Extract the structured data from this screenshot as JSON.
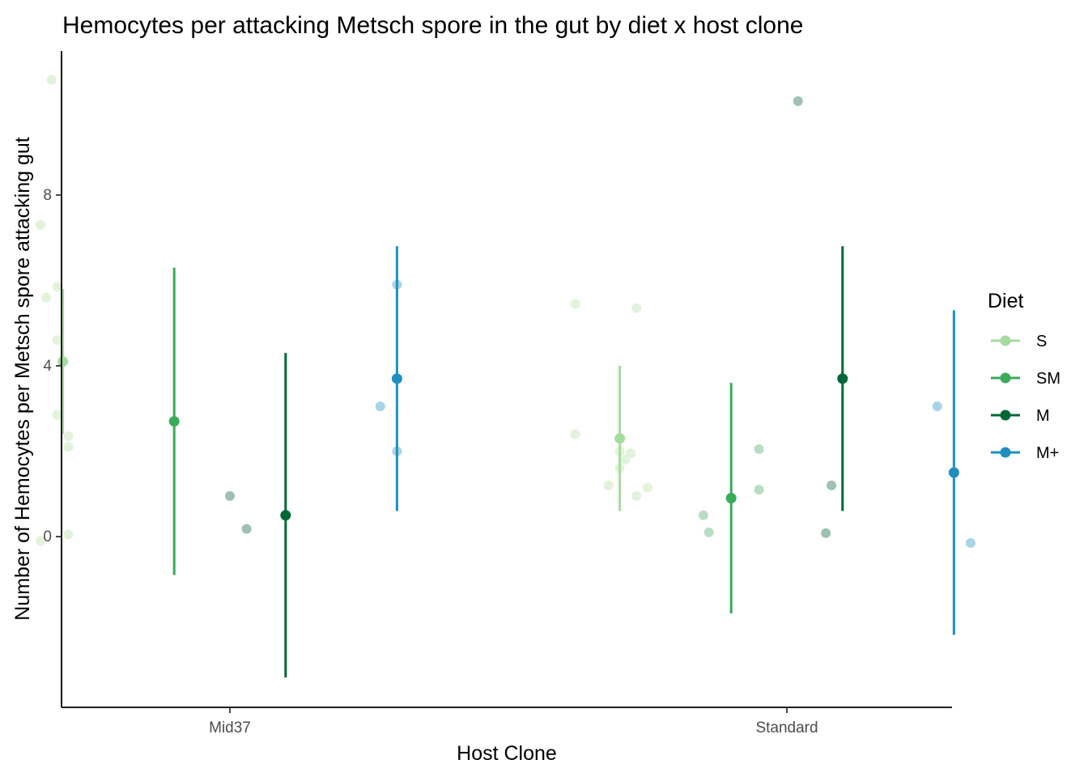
{
  "chart_data": {
    "type": "scatter",
    "title": "Hemocytes per attacking Metsch spore in the gut by diet x host clone",
    "xlabel": "Host Clone",
    "ylabel": "Number of Hemocytes per Metsch spore attacking gut",
    "categories": [
      "Mid37",
      "Standard"
    ],
    "yticks": [
      0,
      4,
      8
    ],
    "ylim": [
      -4,
      11.5
    ],
    "grid": false,
    "legend": {
      "title": "Diet",
      "position": "right"
    },
    "dodge_offsets": [
      -0.3,
      -0.1,
      0.1,
      0.3
    ],
    "series": [
      {
        "name": "S",
        "color": "#a6dba0",
        "raw_color": "#e2f2db",
        "summary": [
          {
            "category": "Mid37",
            "mean": 4.1,
            "lower": 2.4,
            "upper": 5.8
          },
          {
            "category": "Standard",
            "mean": 2.3,
            "lower": 0.6,
            "upper": 4.0
          }
        ],
        "points": [
          {
            "category": "Mid37",
            "jitter": -0.02,
            "y": 10.7
          },
          {
            "category": "Mid37",
            "jitter": -0.04,
            "y": 7.3
          },
          {
            "category": "Mid37",
            "jitter": -0.01,
            "y": 5.85
          },
          {
            "category": "Mid37",
            "jitter": -0.03,
            "y": 5.6
          },
          {
            "category": "Mid37",
            "jitter": -0.01,
            "y": 4.6
          },
          {
            "category": "Mid37",
            "jitter": -0.01,
            "y": 2.85
          },
          {
            "category": "Mid37",
            "jitter": 0.01,
            "y": 2.35
          },
          {
            "category": "Mid37",
            "jitter": 0.01,
            "y": 2.1
          },
          {
            "category": "Mid37",
            "jitter": 0.01,
            "y": 0.05
          },
          {
            "category": "Mid37",
            "jitter": -0.04,
            "y": -0.1
          },
          {
            "category": "Standard",
            "jitter": -0.08,
            "y": 5.45
          },
          {
            "category": "Standard",
            "jitter": 0.03,
            "y": 5.35
          },
          {
            "category": "Standard",
            "jitter": -0.08,
            "y": 2.4
          },
          {
            "category": "Standard",
            "jitter": 0.0,
            "y": 2.0
          },
          {
            "category": "Standard",
            "jitter": 0.02,
            "y": 1.95
          },
          {
            "category": "Standard",
            "jitter": 0.01,
            "y": 1.8
          },
          {
            "category": "Standard",
            "jitter": 0.0,
            "y": 1.6
          },
          {
            "category": "Standard",
            "jitter": -0.02,
            "y": 1.2
          },
          {
            "category": "Standard",
            "jitter": 0.05,
            "y": 1.15
          },
          {
            "category": "Standard",
            "jitter": 0.03,
            "y": 0.95
          }
        ]
      },
      {
        "name": "SM",
        "color": "#3aab5b",
        "raw_color": "#b9ddc4",
        "summary": [
          {
            "category": "Mid37",
            "mean": 2.7,
            "lower": -0.9,
            "upper": 6.3
          },
          {
            "category": "Standard",
            "mean": 0.9,
            "lower": -1.8,
            "upper": 3.6
          }
        ],
        "points": [
          {
            "category": "Standard",
            "jitter": -0.05,
            "y": 0.5
          },
          {
            "category": "Standard",
            "jitter": -0.04,
            "y": 0.1
          },
          {
            "category": "Standard",
            "jitter": 0.05,
            "y": 2.05
          },
          {
            "category": "Standard",
            "jitter": 0.05,
            "y": 1.1
          }
        ]
      },
      {
        "name": "M",
        "color": "#006837",
        "raw_color": "#9fc1b1",
        "summary": [
          {
            "category": "Mid37",
            "mean": 0.5,
            "lower": -3.3,
            "upper": 4.3
          },
          {
            "category": "Standard",
            "mean": 3.7,
            "lower": 0.6,
            "upper": 6.8
          }
        ],
        "points": [
          {
            "category": "Mid37",
            "jitter": -0.1,
            "y": 0.95
          },
          {
            "category": "Mid37",
            "jitter": -0.07,
            "y": 0.18
          },
          {
            "category": "Standard",
            "jitter": -0.08,
            "y": 10.2
          },
          {
            "category": "Standard",
            "jitter": -0.02,
            "y": 1.2
          },
          {
            "category": "Standard",
            "jitter": -0.03,
            "y": 0.08
          }
        ]
      },
      {
        "name": "M+",
        "color": "#1f8fbf",
        "raw_color": "#a8d4e6",
        "summary": [
          {
            "category": "Mid37",
            "mean": 3.7,
            "lower": 0.6,
            "upper": 6.8
          },
          {
            "category": "Standard",
            "mean": 1.5,
            "lower": -2.3,
            "upper": 5.3
          }
        ],
        "points": [
          {
            "category": "Mid37",
            "jitter": 0.0,
            "y": 5.9
          },
          {
            "category": "Mid37",
            "jitter": -0.03,
            "y": 3.05
          },
          {
            "category": "Mid37",
            "jitter": 0.0,
            "y": 2.0
          },
          {
            "category": "Standard",
            "jitter": -0.03,
            "y": 3.05
          },
          {
            "category": "Standard",
            "jitter": 0.03,
            "y": -0.15
          }
        ]
      }
    ]
  }
}
